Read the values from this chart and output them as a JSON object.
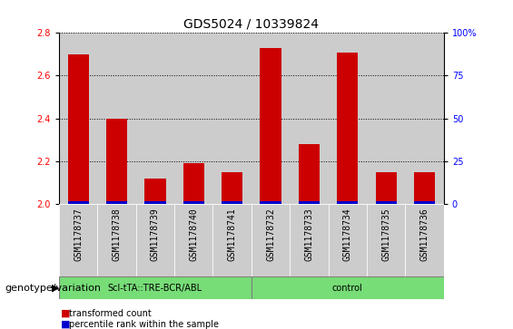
{
  "title": "GDS5024 / 10339824",
  "samples": [
    "GSM1178737",
    "GSM1178738",
    "GSM1178739",
    "GSM1178740",
    "GSM1178741",
    "GSM1178732",
    "GSM1178733",
    "GSM1178734",
    "GSM1178735",
    "GSM1178736"
  ],
  "transformed_counts": [
    2.7,
    2.4,
    2.12,
    2.19,
    2.15,
    2.73,
    2.28,
    2.71,
    2.15,
    2.15
  ],
  "percentile_values": [
    3,
    3,
    3,
    3,
    3,
    4,
    2,
    4,
    3,
    3
  ],
  "bar_bottom": 2.0,
  "ylim": [
    2.0,
    2.8
  ],
  "y_ticks_left": [
    2.0,
    2.2,
    2.4,
    2.6,
    2.8
  ],
  "y_ticks_right": [
    0,
    25,
    50,
    75,
    100
  ],
  "y_ticks_right_labels": [
    "0",
    "25",
    "50",
    "75",
    "100%"
  ],
  "red_color": "#cc0000",
  "blue_color": "#0000cc",
  "bar_bg_color": "#cccccc",
  "group1_label": "Scl-tTA::TRE-BCR/ABL",
  "group2_label": "control",
  "group1_indices": [
    0,
    1,
    2,
    3,
    4
  ],
  "group2_indices": [
    5,
    6,
    7,
    8,
    9
  ],
  "group_bg_color": "#77dd77",
  "genotype_label": "genotype/variation",
  "legend_transformed": "transformed count",
  "legend_percentile": "percentile rank within the sample",
  "title_fontsize": 10,
  "tick_fontsize": 7,
  "label_fontsize": 8,
  "bar_width": 0.55,
  "blue_bar_height": 0.012
}
